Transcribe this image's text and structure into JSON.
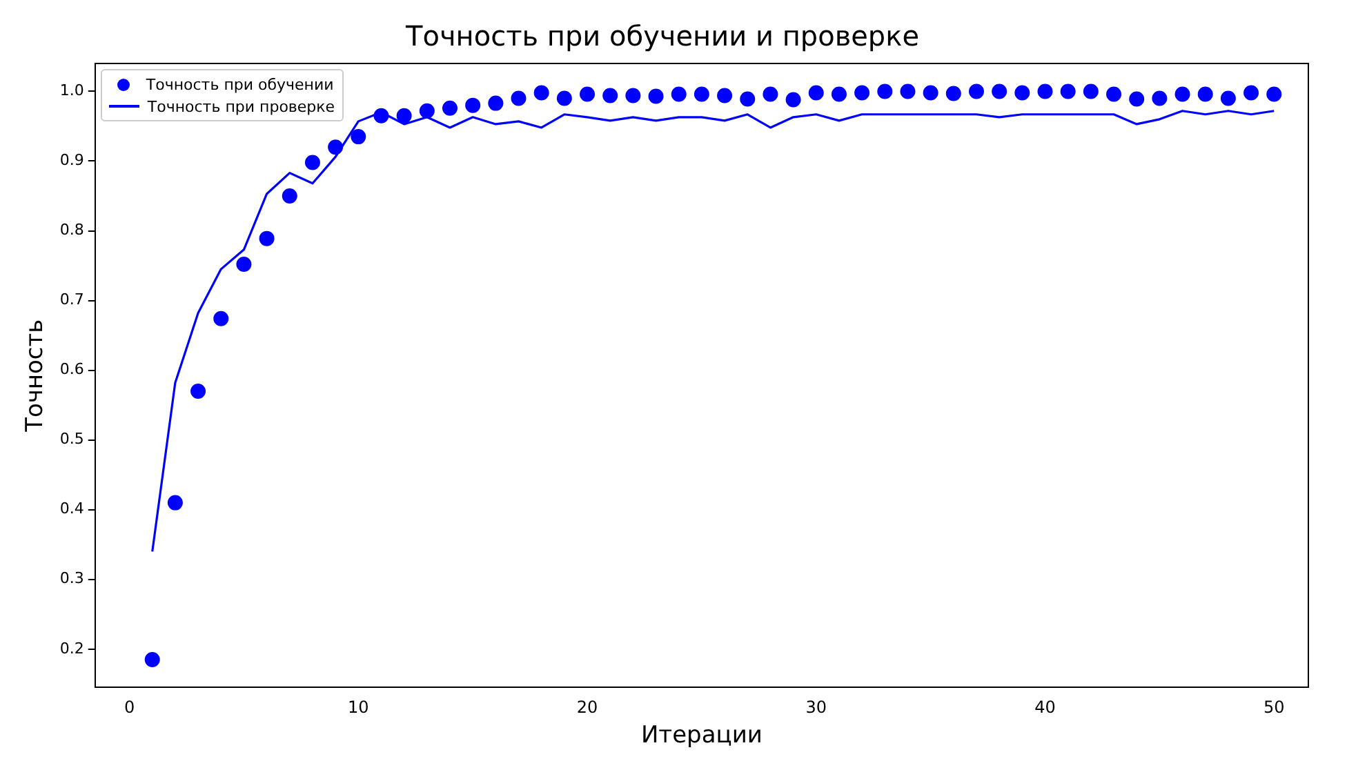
{
  "chart_data": {
    "type": "line",
    "title": "Точность при обучении и проверке",
    "xlabel": "Итерации",
    "ylabel": "Точность",
    "x": [
      1,
      2,
      3,
      4,
      5,
      6,
      7,
      8,
      9,
      10,
      11,
      12,
      13,
      14,
      15,
      16,
      17,
      18,
      19,
      20,
      21,
      22,
      23,
      24,
      25,
      26,
      27,
      28,
      29,
      30,
      31,
      32,
      33,
      34,
      35,
      36,
      37,
      38,
      39,
      40,
      41,
      42,
      43,
      44,
      45,
      46,
      47,
      48,
      49,
      50
    ],
    "series": [
      {
        "name": "Точность при обучении",
        "type": "scatter",
        "marker": "circle",
        "color": "#0000ff",
        "values": [
          0.185,
          0.41,
          0.57,
          0.674,
          0.752,
          0.789,
          0.85,
          0.898,
          0.92,
          0.935,
          0.965,
          0.965,
          0.972,
          0.976,
          0.98,
          0.983,
          0.99,
          0.998,
          0.99,
          0.996,
          0.994,
          0.994,
          0.993,
          0.996,
          0.996,
          0.994,
          0.989,
          0.996,
          0.988,
          0.998,
          0.996,
          0.998,
          1.0,
          1.0,
          0.998,
          0.997,
          1.0,
          1.0,
          0.998,
          1.0,
          1.0,
          1.0,
          0.996,
          0.989,
          0.99,
          0.996,
          0.996,
          0.99,
          0.998,
          0.996
        ]
      },
      {
        "name": "Точность при проверке",
        "type": "line",
        "line_style": "solid",
        "color": "#0000ff",
        "values": [
          0.34,
          0.582,
          0.682,
          0.745,
          0.773,
          0.853,
          0.883,
          0.868,
          0.906,
          0.957,
          0.97,
          0.953,
          0.963,
          0.948,
          0.963,
          0.953,
          0.957,
          0.948,
          0.967,
          0.963,
          0.958,
          0.963,
          0.958,
          0.963,
          0.963,
          0.958,
          0.967,
          0.948,
          0.963,
          0.967,
          0.958,
          0.967,
          0.967,
          0.967,
          0.967,
          0.967,
          0.967,
          0.963,
          0.967,
          0.967,
          0.967,
          0.967,
          0.967,
          0.953,
          0.96,
          0.972,
          0.967,
          0.972,
          0.967,
          0.972
        ]
      }
    ],
    "xlim": [
      -1.5,
      51.5
    ],
    "xticks": [
      0,
      10,
      20,
      30,
      40,
      50
    ],
    "ylim": [
      0.145,
      1.04
    ],
    "yticks": [
      0.2,
      0.3,
      0.4,
      0.5,
      0.6,
      0.7,
      0.8,
      0.9,
      {
        "value": 1.0,
        "label": "1.0"
      }
    ],
    "grid": false,
    "legend": "top left"
  }
}
